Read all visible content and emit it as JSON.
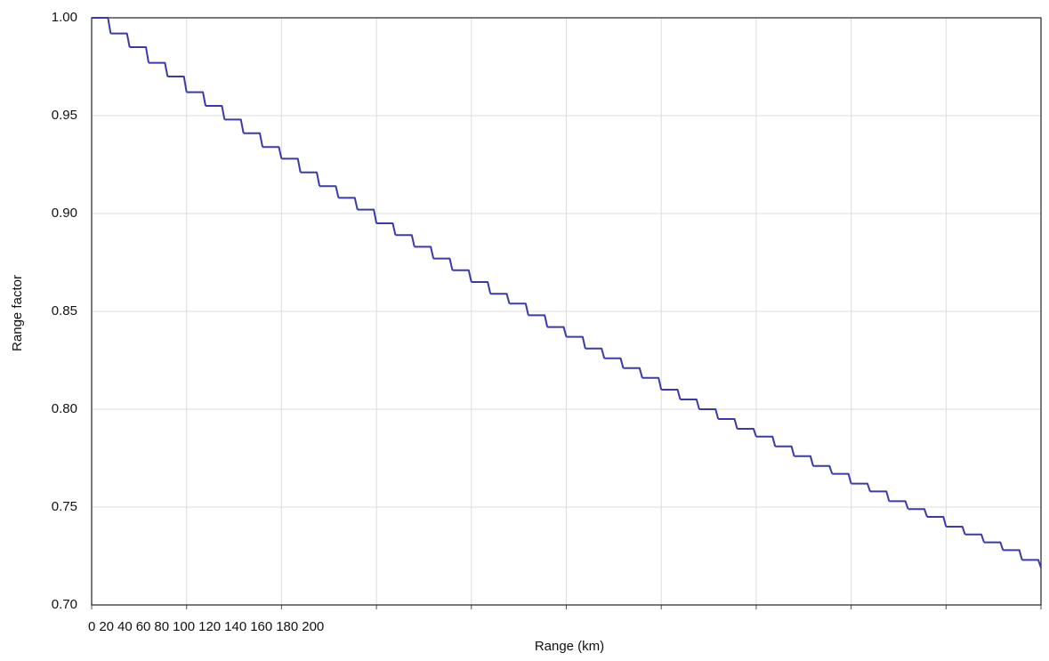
{
  "chart_data": {
    "type": "line",
    "step": true,
    "x_label": "Range (km)",
    "y_label": "Range factor",
    "x": [
      0,
      4,
      8,
      12,
      16,
      20,
      24,
      28,
      32,
      36,
      40,
      44,
      48,
      52,
      56,
      60,
      64,
      68,
      72,
      76,
      80,
      84,
      88,
      92,
      96,
      100,
      104,
      108,
      112,
      116,
      120,
      124,
      128,
      132,
      136,
      140,
      144,
      148,
      152,
      156,
      160,
      164,
      168,
      172,
      176,
      180,
      184,
      188,
      192,
      196,
      200
    ],
    "series": [
      {
        "color": "#3a3aaa",
        "values": [
          1.0,
          0.992,
          0.985,
          0.977,
          0.97,
          0.962,
          0.955,
          0.948,
          0.941,
          0.934,
          0.928,
          0.921,
          0.914,
          0.908,
          0.902,
          0.895,
          0.889,
          0.883,
          0.877,
          0.871,
          0.865,
          0.859,
          0.854,
          0.848,
          0.842,
          0.837,
          0.831,
          0.826,
          0.821,
          0.816,
          0.81,
          0.805,
          0.8,
          0.795,
          0.79,
          0.786,
          0.781,
          0.776,
          0.771,
          0.767,
          0.762,
          0.758,
          0.753,
          0.749,
          0.745,
          0.74,
          0.736,
          0.732,
          0.728,
          0.723,
          0.719
        ]
      }
    ],
    "xlim": [
      0,
      200
    ],
    "xticks": [
      0,
      20,
      40,
      60,
      80,
      100,
      120,
      140,
      160,
      180,
      200
    ],
    "ylim": [
      0.7,
      1.0
    ],
    "yticks": [
      {
        "value": 0.7,
        "label": "0.70"
      },
      0.75,
      {
        "value": 0.8,
        "label": "0.80"
      },
      0.85,
      {
        "value": 0.9,
        "label": "0.90"
      },
      0.95,
      {
        "value": 1.0,
        "label": "1.00"
      }
    ],
    "grid": true
  }
}
